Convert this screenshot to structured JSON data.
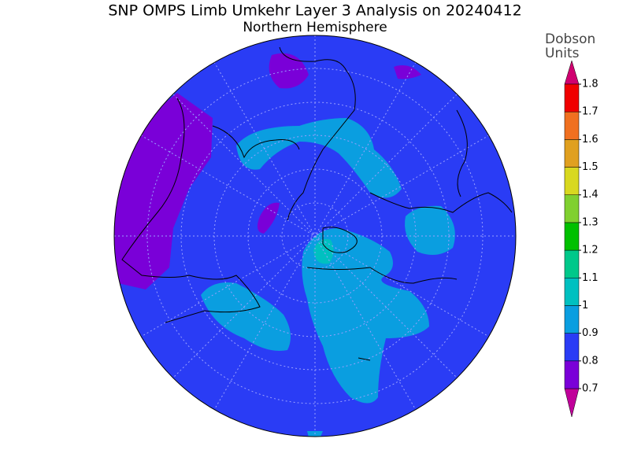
{
  "title": "SNP OMPS Limb Umkehr Layer 3 Analysis on 20240412",
  "subtitle": "Northern Hemisphere",
  "colorbar": {
    "label_lines": [
      "Dobson",
      "Units"
    ],
    "ticks": [
      0.7,
      0.8,
      0.9,
      1,
      1.1,
      1.2,
      1.3,
      1.4,
      1.5,
      1.6,
      1.7,
      1.8
    ],
    "colors": [
      "#7a00d8",
      "#2a3cf5",
      "#0a9ee0",
      "#00c0c0",
      "#00c88a",
      "#00c000",
      "#80d030",
      "#d8d820",
      "#e0a020",
      "#f07020",
      "#f00000"
    ],
    "under_color": "#c0009a",
    "over_color": "#d00070"
  }
}
